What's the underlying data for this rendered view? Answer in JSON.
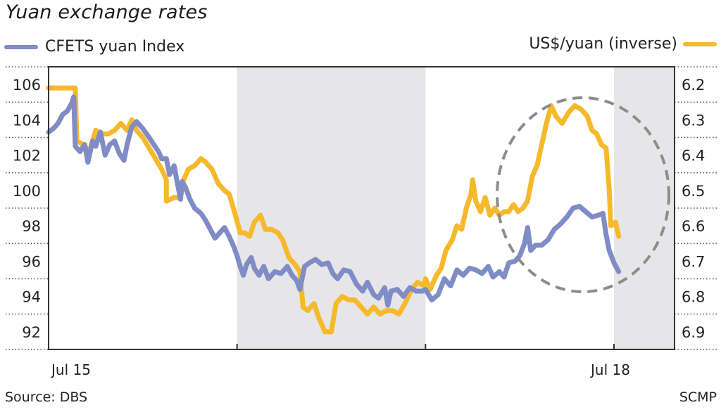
{
  "header": {
    "title": "Yuan exchange rates",
    "legend_left_label": "CFETS yuan Index",
    "legend_right_label": "US$/yuan (inverse)"
  },
  "footer": {
    "source": "Source: DBS",
    "credit": "SCMP"
  },
  "colors": {
    "cfets": "#7f8cc6",
    "usd": "#f6b92b",
    "shade": "#e6e6e8",
    "axis": "#333333",
    "circle": "#8c8c8c"
  },
  "chart_data": {
    "type": "line",
    "title": "Yuan exchange rates",
    "xlabel": "",
    "ylabel_left": "CFETS yuan Index",
    "ylabel_right": "US$/yuan (inverse)",
    "x_tick_labels": [
      "Jul 15",
      "Jul 18"
    ],
    "x_unit": "months since Jul 2015",
    "xlim": [
      0,
      40
    ],
    "y_left_ticks": [
      106,
      104,
      102,
      100,
      98,
      96,
      94,
      92
    ],
    "y_left_range": [
      91,
      107
    ],
    "y_right_ticks": [
      6.2,
      6.3,
      6.4,
      6.5,
      6.6,
      6.7,
      6.8,
      6.9
    ],
    "y_right_range": [
      6.15,
      6.95
    ],
    "y_right_inverted": true,
    "grid": "dotted separators at axis labels",
    "legend_position": "top (left series at left, right series at right)",
    "shaded_periods": [
      {
        "from_month": 12,
        "to_month": 24,
        "label": "2016-H2 to 2017-H1 band"
      },
      {
        "from_month": 36,
        "to_month": 40,
        "label": "after Jul 18"
      }
    ],
    "annotation": "dashed ellipse highlighting recent divergence (approx. Mar 2018 to Aug 2018)",
    "series": [
      {
        "name": "CFETS yuan Index",
        "axis": "left",
        "points": [
          [
            0.0,
            103.3
          ],
          [
            0.3,
            103.5
          ],
          [
            0.6,
            103.8
          ],
          [
            0.9,
            104.3
          ],
          [
            1.2,
            104.5
          ],
          [
            1.5,
            105.0
          ],
          [
            1.6,
            105.3
          ],
          [
            1.7,
            102.5
          ],
          [
            2.0,
            102.2
          ],
          [
            2.3,
            102.6
          ],
          [
            2.5,
            101.6
          ],
          [
            2.8,
            102.8
          ],
          [
            3.0,
            102.5
          ],
          [
            3.3,
            103.3
          ],
          [
            3.6,
            102.0
          ],
          [
            3.9,
            102.6
          ],
          [
            4.2,
            102.8
          ],
          [
            4.5,
            102.1
          ],
          [
            4.8,
            101.7
          ],
          [
            5.0,
            102.6
          ],
          [
            5.3,
            103.6
          ],
          [
            5.6,
            103.9
          ],
          [
            6.0,
            103.5
          ],
          [
            6.4,
            103.0
          ],
          [
            6.7,
            102.6
          ],
          [
            7.0,
            102.2
          ],
          [
            7.2,
            101.8
          ],
          [
            7.5,
            101.8
          ],
          [
            7.7,
            100.9
          ],
          [
            8.0,
            101.4
          ],
          [
            8.2,
            100.4
          ],
          [
            8.4,
            99.5
          ],
          [
            8.5,
            100.5
          ],
          [
            8.7,
            100.2
          ],
          [
            9.0,
            99.5
          ],
          [
            9.3,
            99.0
          ],
          [
            9.7,
            98.7
          ],
          [
            10.0,
            98.3
          ],
          [
            10.3,
            97.8
          ],
          [
            10.6,
            97.3
          ],
          [
            10.9,
            97.6
          ],
          [
            11.2,
            97.9
          ],
          [
            11.5,
            97.4
          ],
          [
            11.8,
            96.8
          ],
          [
            12.0,
            96.3
          ],
          [
            12.2,
            95.7
          ],
          [
            12.4,
            95.2
          ],
          [
            12.6,
            95.8
          ],
          [
            12.9,
            96.2
          ],
          [
            13.1,
            95.6
          ],
          [
            13.4,
            95.2
          ],
          [
            13.7,
            95.7
          ],
          [
            14.0,
            95.0
          ],
          [
            14.4,
            95.4
          ],
          [
            14.8,
            95.3
          ],
          [
            15.2,
            95.7
          ],
          [
            15.5,
            95.2
          ],
          [
            15.8,
            94.9
          ],
          [
            16.0,
            94.4
          ],
          [
            16.3,
            95.7
          ],
          [
            16.6,
            95.9
          ],
          [
            17.0,
            96.1
          ],
          [
            17.4,
            95.8
          ],
          [
            17.8,
            95.9
          ],
          [
            18.1,
            95.3
          ],
          [
            18.4,
            95.0
          ],
          [
            18.8,
            95.5
          ],
          [
            19.2,
            95.4
          ],
          [
            19.6,
            94.7
          ],
          [
            20.0,
            94.3
          ],
          [
            20.3,
            94.8
          ],
          [
            20.7,
            94.1
          ],
          [
            21.0,
            93.9
          ],
          [
            21.4,
            94.5
          ],
          [
            21.6,
            93.5
          ],
          [
            21.8,
            94.3
          ],
          [
            22.2,
            94.4
          ],
          [
            22.6,
            94.0
          ],
          [
            23.0,
            94.5
          ],
          [
            23.4,
            94.3
          ],
          [
            23.8,
            94.3
          ],
          [
            24.0,
            94.4
          ],
          [
            24.4,
            93.8
          ],
          [
            24.8,
            94.1
          ],
          [
            25.2,
            95.0
          ],
          [
            25.6,
            94.6
          ],
          [
            26.0,
            95.5
          ],
          [
            26.4,
            95.2
          ],
          [
            26.8,
            95.6
          ],
          [
            27.2,
            95.5
          ],
          [
            27.6,
            95.3
          ],
          [
            28.0,
            95.7
          ],
          [
            28.3,
            95.1
          ],
          [
            28.7,
            95.4
          ],
          [
            29.0,
            95.1
          ],
          [
            29.3,
            95.9
          ],
          [
            29.7,
            96.0
          ],
          [
            30.0,
            96.3
          ],
          [
            30.3,
            97.0
          ],
          [
            30.5,
            97.9
          ],
          [
            30.7,
            96.6
          ],
          [
            31.0,
            96.9
          ],
          [
            31.4,
            96.9
          ],
          [
            31.8,
            97.2
          ],
          [
            32.2,
            97.8
          ],
          [
            32.6,
            98.1
          ],
          [
            33.0,
            98.5
          ],
          [
            33.4,
            99.0
          ],
          [
            33.8,
            99.1
          ],
          [
            34.2,
            98.8
          ],
          [
            34.6,
            98.5
          ],
          [
            35.0,
            98.6
          ],
          [
            35.3,
            98.7
          ],
          [
            35.5,
            97.5
          ],
          [
            35.7,
            96.6
          ],
          [
            36.0,
            95.9
          ],
          [
            36.3,
            95.4
          ]
        ]
      },
      {
        "name": "US$/yuan (inverse)",
        "axis": "right",
        "points": [
          [
            0.0,
            6.21
          ],
          [
            1.7,
            6.21
          ],
          [
            1.8,
            6.36
          ],
          [
            2.2,
            6.37
          ],
          [
            2.6,
            6.39
          ],
          [
            3.0,
            6.33
          ],
          [
            3.4,
            6.34
          ],
          [
            3.8,
            6.34
          ],
          [
            4.2,
            6.33
          ],
          [
            4.6,
            6.31
          ],
          [
            5.0,
            6.33
          ],
          [
            5.3,
            6.3
          ],
          [
            5.6,
            6.33
          ],
          [
            6.0,
            6.35
          ],
          [
            6.4,
            6.38
          ],
          [
            6.8,
            6.41
          ],
          [
            7.2,
            6.44
          ],
          [
            7.5,
            6.47
          ],
          [
            7.5,
            6.53
          ],
          [
            8.0,
            6.52
          ],
          [
            8.4,
            6.52
          ],
          [
            8.6,
            6.47
          ],
          [
            8.9,
            6.44
          ],
          [
            9.3,
            6.43
          ],
          [
            9.7,
            6.41
          ],
          [
            10.0,
            6.42
          ],
          [
            10.4,
            6.44
          ],
          [
            10.8,
            6.48
          ],
          [
            11.2,
            6.5
          ],
          [
            11.5,
            6.51
          ],
          [
            11.9,
            6.57
          ],
          [
            12.2,
            6.62
          ],
          [
            12.5,
            6.62
          ],
          [
            12.8,
            6.63
          ],
          [
            13.1,
            6.59
          ],
          [
            13.5,
            6.57
          ],
          [
            13.8,
            6.61
          ],
          [
            14.2,
            6.61
          ],
          [
            14.6,
            6.62
          ],
          [
            14.9,
            6.64
          ],
          [
            15.3,
            6.69
          ],
          [
            15.7,
            6.71
          ],
          [
            16.0,
            6.73
          ],
          [
            16.2,
            6.83
          ],
          [
            16.5,
            6.84
          ],
          [
            16.9,
            6.82
          ],
          [
            17.2,
            6.86
          ],
          [
            17.6,
            6.9
          ],
          [
            18.0,
            6.9
          ],
          [
            18.3,
            6.82
          ],
          [
            18.7,
            6.8
          ],
          [
            19.1,
            6.81
          ],
          [
            19.5,
            6.81
          ],
          [
            19.9,
            6.83
          ],
          [
            20.3,
            6.85
          ],
          [
            20.7,
            6.83
          ],
          [
            21.1,
            6.85
          ],
          [
            21.5,
            6.84
          ],
          [
            21.9,
            6.84
          ],
          [
            22.3,
            6.85
          ],
          [
            22.7,
            6.82
          ],
          [
            23.1,
            6.78
          ],
          [
            23.5,
            6.76
          ],
          [
            23.9,
            6.77
          ],
          [
            24.0,
            6.75
          ],
          [
            24.3,
            6.78
          ],
          [
            24.7,
            6.74
          ],
          [
            25.0,
            6.72
          ],
          [
            25.3,
            6.67
          ],
          [
            25.7,
            6.64
          ],
          [
            26.0,
            6.6
          ],
          [
            26.3,
            6.61
          ],
          [
            26.6,
            6.55
          ],
          [
            26.9,
            6.51
          ],
          [
            27.0,
            6.47
          ],
          [
            27.2,
            6.53
          ],
          [
            27.5,
            6.56
          ],
          [
            27.8,
            6.52
          ],
          [
            28.1,
            6.57
          ],
          [
            28.4,
            6.55
          ],
          [
            28.7,
            6.57
          ],
          [
            29.0,
            6.56
          ],
          [
            29.3,
            6.56
          ],
          [
            29.6,
            6.54
          ],
          [
            29.9,
            6.56
          ],
          [
            30.2,
            6.55
          ],
          [
            30.5,
            6.53
          ],
          [
            30.8,
            6.46
          ],
          [
            31.1,
            6.43
          ],
          [
            31.4,
            6.37
          ],
          [
            31.7,
            6.31
          ],
          [
            32.0,
            6.26
          ],
          [
            32.3,
            6.29
          ],
          [
            32.7,
            6.31
          ],
          [
            33.1,
            6.28
          ],
          [
            33.5,
            6.26
          ],
          [
            33.9,
            6.27
          ],
          [
            34.3,
            6.29
          ],
          [
            34.6,
            6.33
          ],
          [
            34.9,
            6.34
          ],
          [
            35.2,
            6.37
          ],
          [
            35.5,
            6.38
          ],
          [
            35.7,
            6.5
          ],
          [
            35.8,
            6.6
          ],
          [
            36.1,
            6.59
          ],
          [
            36.3,
            6.63
          ]
        ]
      }
    ]
  }
}
